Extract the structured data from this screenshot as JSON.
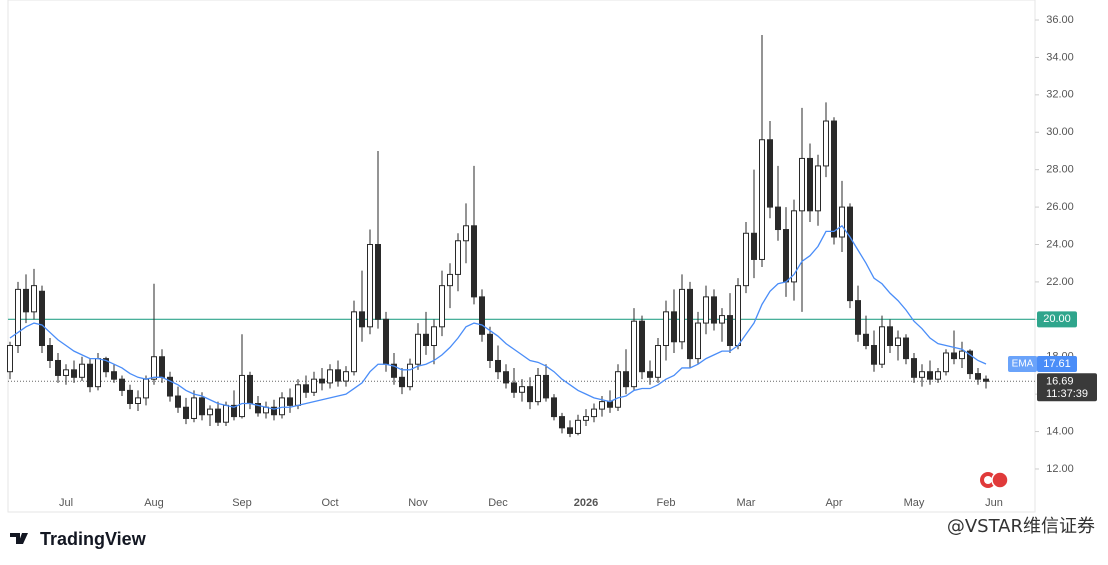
{
  "chart_data": {
    "type": "candlestick",
    "categories": [
      null,
      null,
      null,
      null,
      null,
      null,
      null,
      "Jul",
      null,
      null,
      null,
      null,
      null,
      null,
      null,
      null,
      null,
      null,
      "Aug",
      null,
      null,
      null,
      null,
      null,
      null,
      null,
      null,
      null,
      null,
      "Sep",
      null,
      null,
      null,
      null,
      null,
      null,
      null,
      null,
      null,
      null,
      "Oct",
      null,
      null,
      null,
      null,
      null,
      null,
      null,
      null,
      null,
      null,
      "Nov",
      null,
      null,
      null,
      null,
      null,
      null,
      null,
      null,
      null,
      "Dec",
      null,
      null,
      null,
      null,
      null,
      null,
      null,
      null,
      null,
      null,
      "2026",
      null,
      null,
      null,
      null,
      null,
      null,
      null,
      null,
      null,
      "Feb",
      null,
      null,
      null,
      null,
      null,
      null,
      null,
      null,
      null,
      "Mar",
      null,
      null,
      null,
      null,
      null,
      null,
      null,
      null,
      null,
      null,
      "Apr",
      null,
      null,
      null,
      null,
      null,
      null,
      null,
      null,
      null,
      "May",
      null,
      null,
      null,
      null,
      null,
      null,
      null,
      null,
      null,
      "Jun"
    ],
    "ohlc": [
      [
        17.2,
        18.8,
        16.8,
        18.6
      ],
      [
        18.6,
        22.0,
        18.2,
        21.6
      ],
      [
        21.6,
        22.4,
        19.8,
        20.4
      ],
      [
        20.4,
        22.7,
        20.0,
        21.8
      ],
      [
        21.5,
        21.8,
        18.2,
        18.6
      ],
      [
        18.6,
        19.0,
        17.4,
        17.8
      ],
      [
        17.8,
        18.2,
        16.6,
        17.0
      ],
      [
        17.0,
        17.6,
        16.5,
        17.3
      ],
      [
        17.3,
        17.8,
        16.6,
        16.9
      ],
      [
        16.9,
        18.0,
        16.7,
        17.6
      ],
      [
        17.6,
        17.9,
        16.1,
        16.4
      ],
      [
        16.4,
        18.2,
        16.2,
        17.9
      ],
      [
        17.9,
        18.0,
        16.9,
        17.2
      ],
      [
        17.2,
        17.6,
        16.6,
        16.8
      ],
      [
        16.8,
        17.0,
        15.9,
        16.2
      ],
      [
        16.2,
        16.5,
        15.2,
        15.5
      ],
      [
        15.5,
        16.2,
        15.1,
        15.8
      ],
      [
        15.8,
        17.0,
        15.4,
        16.8
      ],
      [
        16.8,
        21.9,
        16.5,
        18.0
      ],
      [
        18.0,
        18.4,
        16.6,
        16.9
      ],
      [
        16.9,
        17.2,
        15.6,
        15.9
      ],
      [
        15.9,
        16.4,
        15.0,
        15.3
      ],
      [
        15.3,
        15.8,
        14.4,
        14.7
      ],
      [
        14.7,
        16.2,
        14.5,
        15.8
      ],
      [
        15.8,
        16.1,
        14.6,
        14.9
      ],
      [
        14.9,
        15.4,
        14.3,
        15.2
      ],
      [
        15.2,
        15.6,
        14.3,
        14.5
      ],
      [
        14.5,
        15.6,
        14.3,
        15.4
      ],
      [
        15.4,
        16.2,
        14.6,
        14.8
      ],
      [
        14.8,
        19.2,
        14.7,
        17.0
      ],
      [
        17.0,
        17.2,
        15.2,
        15.5
      ],
      [
        15.5,
        15.9,
        14.8,
        15.0
      ],
      [
        15.0,
        15.6,
        14.7,
        15.3
      ],
      [
        15.3,
        15.7,
        14.6,
        14.9
      ],
      [
        14.9,
        16.1,
        14.7,
        15.8
      ],
      [
        15.8,
        16.3,
        15.0,
        15.4
      ],
      [
        15.4,
        16.8,
        15.2,
        16.5
      ],
      [
        16.5,
        17.0,
        15.8,
        16.1
      ],
      [
        16.1,
        17.2,
        15.9,
        16.8
      ],
      [
        16.8,
        17.4,
        16.2,
        16.6
      ],
      [
        16.6,
        17.6,
        16.3,
        17.3
      ],
      [
        17.3,
        17.8,
        16.4,
        16.7
      ],
      [
        16.7,
        17.5,
        16.4,
        17.2
      ],
      [
        17.2,
        21.0,
        17.0,
        20.4
      ],
      [
        20.4,
        22.6,
        18.8,
        19.6
      ],
      [
        19.6,
        24.8,
        19.2,
        24.0
      ],
      [
        24.0,
        29.0,
        19.5,
        20.0
      ],
      [
        20.0,
        20.4,
        17.2,
        17.6
      ],
      [
        17.6,
        18.2,
        16.5,
        16.9
      ],
      [
        16.9,
        17.4,
        16.0,
        16.4
      ],
      [
        16.4,
        17.9,
        16.2,
        17.6
      ],
      [
        17.6,
        19.8,
        17.3,
        19.2
      ],
      [
        19.2,
        20.4,
        18.1,
        18.6
      ],
      [
        18.6,
        20.0,
        17.6,
        19.6
      ],
      [
        19.6,
        22.6,
        19.1,
        21.8
      ],
      [
        21.8,
        23.0,
        20.6,
        22.4
      ],
      [
        22.4,
        24.6,
        21.5,
        24.2
      ],
      [
        24.2,
        26.2,
        23.0,
        25.0
      ],
      [
        25.0,
        28.2,
        20.8,
        21.2
      ],
      [
        21.2,
        21.6,
        18.8,
        19.2
      ],
      [
        19.2,
        19.6,
        17.4,
        17.8
      ],
      [
        17.8,
        18.6,
        16.8,
        17.2
      ],
      [
        17.2,
        17.6,
        16.3,
        16.6
      ],
      [
        16.6,
        17.4,
        15.8,
        16.1
      ],
      [
        16.1,
        16.8,
        15.6,
        16.4
      ],
      [
        16.4,
        16.9,
        15.2,
        15.6
      ],
      [
        15.6,
        17.4,
        15.4,
        17.0
      ],
      [
        17.0,
        17.6,
        15.6,
        15.8
      ],
      [
        15.8,
        16.0,
        14.6,
        14.8
      ],
      [
        14.8,
        15.0,
        13.9,
        14.2
      ],
      [
        14.2,
        14.6,
        13.7,
        13.9
      ],
      [
        13.9,
        14.9,
        13.8,
        14.6
      ],
      [
        14.6,
        15.2,
        14.3,
        14.8
      ],
      [
        14.8,
        15.5,
        14.5,
        15.2
      ],
      [
        15.2,
        15.9,
        14.8,
        15.6
      ],
      [
        15.6,
        16.2,
        15.0,
        15.3
      ],
      [
        15.3,
        17.6,
        15.1,
        17.2
      ],
      [
        17.2,
        18.4,
        16.0,
        16.4
      ],
      [
        16.4,
        20.6,
        16.2,
        19.9
      ],
      [
        19.9,
        20.2,
        16.8,
        17.2
      ],
      [
        17.2,
        17.8,
        16.5,
        16.9
      ],
      [
        16.9,
        19.0,
        16.6,
        18.6
      ],
      [
        18.6,
        21.0,
        17.8,
        20.4
      ],
      [
        20.4,
        21.6,
        18.2,
        18.8
      ],
      [
        18.8,
        22.4,
        18.4,
        21.6
      ],
      [
        21.6,
        22.0,
        17.4,
        17.9
      ],
      [
        17.9,
        20.4,
        17.6,
        19.8
      ],
      [
        19.8,
        21.8,
        19.2,
        21.2
      ],
      [
        21.2,
        21.6,
        19.4,
        19.8
      ],
      [
        19.8,
        20.6,
        18.8,
        20.2
      ],
      [
        20.2,
        21.4,
        18.2,
        18.6
      ],
      [
        18.6,
        22.2,
        18.4,
        21.8
      ],
      [
        21.8,
        25.2,
        21.4,
        24.6
      ],
      [
        24.6,
        28.0,
        22.2,
        23.2
      ],
      [
        23.2,
        35.2,
        22.8,
        29.6
      ],
      [
        29.6,
        30.6,
        25.4,
        26.0
      ],
      [
        26.0,
        28.2,
        24.2,
        24.8
      ],
      [
        24.8,
        26.0,
        21.2,
        22.0
      ],
      [
        22.0,
        26.4,
        21.0,
        25.8
      ],
      [
        25.8,
        31.3,
        20.4,
        28.6
      ],
      [
        28.6,
        29.4,
        25.2,
        25.8
      ],
      [
        25.8,
        28.8,
        25.0,
        28.2
      ],
      [
        28.2,
        31.6,
        27.6,
        30.6
      ],
      [
        30.6,
        30.8,
        24.0,
        24.4
      ],
      [
        24.4,
        27.4,
        23.6,
        26.0
      ],
      [
        26.0,
        26.2,
        20.6,
        21.0
      ],
      [
        21.0,
        21.8,
        18.8,
        19.2
      ],
      [
        19.2,
        20.2,
        18.4,
        18.6
      ],
      [
        18.6,
        19.4,
        17.2,
        17.6
      ],
      [
        17.6,
        20.2,
        17.4,
        19.6
      ],
      [
        19.6,
        20.0,
        18.2,
        18.6
      ],
      [
        18.6,
        19.4,
        17.8,
        19.0
      ],
      [
        19.0,
        19.2,
        17.6,
        17.9
      ],
      [
        17.9,
        18.2,
        16.6,
        16.9
      ],
      [
        16.9,
        17.6,
        16.4,
        17.2
      ],
      [
        17.2,
        17.8,
        16.5,
        16.8
      ],
      [
        16.8,
        17.4,
        16.6,
        17.2
      ],
      [
        17.2,
        18.4,
        17.0,
        18.2
      ],
      [
        18.2,
        19.4,
        17.6,
        17.9
      ],
      [
        17.9,
        18.8,
        17.4,
        18.3
      ],
      [
        18.3,
        18.4,
        16.8,
        17.1
      ],
      [
        17.1,
        17.4,
        16.5,
        16.8
      ],
      [
        16.8,
        17.0,
        16.3,
        16.69
      ],
      null
    ],
    "ema": {
      "name": "EMA",
      "color": "#4a8df8",
      "values": [
        19.0,
        19.3,
        19.6,
        19.8,
        19.7,
        19.3,
        18.9,
        18.6,
        18.3,
        18.1,
        17.9,
        17.9,
        17.8,
        17.6,
        17.4,
        17.1,
        16.9,
        16.8,
        16.9,
        16.9,
        16.7,
        16.5,
        16.2,
        16.0,
        15.9,
        15.7,
        15.5,
        15.4,
        15.3,
        15.5,
        15.5,
        15.4,
        15.3,
        15.2,
        15.3,
        15.3,
        15.4,
        15.5,
        15.6,
        15.7,
        15.8,
        15.9,
        16.0,
        16.3,
        16.6,
        17.2,
        17.6,
        17.6,
        17.5,
        17.3,
        17.3,
        17.5,
        17.6,
        17.8,
        18.1,
        18.5,
        19.0,
        19.6,
        19.8,
        19.7,
        19.4,
        19.1,
        18.7,
        18.4,
        18.1,
        17.8,
        17.7,
        17.5,
        17.2,
        16.8,
        16.5,
        16.2,
        16.0,
        15.8,
        15.7,
        15.6,
        15.8,
        15.9,
        16.2,
        16.3,
        16.3,
        16.5,
        16.8,
        17.0,
        17.4,
        17.4,
        17.6,
        17.9,
        18.1,
        18.3,
        18.3,
        18.6,
        19.2,
        19.8,
        20.8,
        21.5,
        21.9,
        22.0,
        22.4,
        23.1,
        23.4,
        23.9,
        24.7,
        24.7,
        25.0,
        24.4,
        23.7,
        23.0,
        22.2,
        21.9,
        21.4,
        21.0,
        20.5,
        19.9,
        19.5,
        19.0,
        18.7,
        18.6,
        18.5,
        18.4,
        18.1,
        17.8,
        17.61,
        null
      ],
      "last": 17.61
    },
    "up_color": "#ffffff",
    "down_color": "#2a2a2a",
    "wick_color": "#2a2a2a",
    "hline": {
      "value": 20,
      "label": "20.00",
      "color": "#2fa58c"
    },
    "last_price": 16.69,
    "countdown": "11:37:39",
    "ylim": [
      9.7,
      37.07
    ],
    "yticks": [
      {
        "value": 12,
        "label": "12.00"
      },
      {
        "value": 14,
        "label": "14.00"
      },
      {
        "value": 16,
        "label": "16.00"
      },
      {
        "value": 18,
        "label": "18.00"
      },
      {
        "value": 20,
        "label": "20.00"
      },
      {
        "value": 22,
        "label": "22.00"
      },
      {
        "value": 24,
        "label": "24.00"
      },
      {
        "value": 26,
        "label": "26.00"
      },
      {
        "value": 28,
        "label": "28.00"
      },
      {
        "value": 30,
        "label": "30.00"
      },
      {
        "value": 32,
        "label": "32.00"
      },
      {
        "value": 34,
        "label": "34.00"
      },
      {
        "value": 36,
        "label": "36.00"
      }
    ],
    "grid": false,
    "branding": "TradingView",
    "watermark": "@VSTAR维信证券"
  }
}
